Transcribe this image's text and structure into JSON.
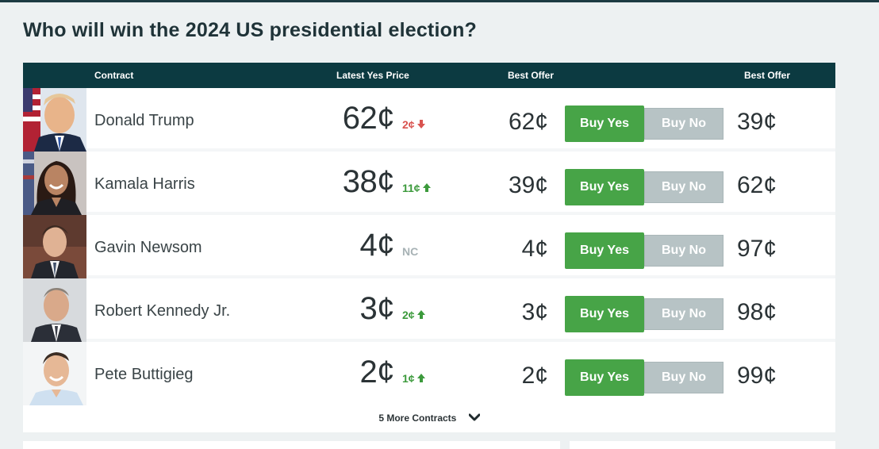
{
  "page": {
    "title": "Who will win the 2024 US presidential election?"
  },
  "table": {
    "headers": {
      "contract": "Contract",
      "latest_yes_price": "Latest Yes Price",
      "best_offer_yes": "Best Offer",
      "best_offer_no": "Best Offer"
    },
    "rows": [
      {
        "name": "Donald Trump",
        "price": "62¢",
        "change": "2¢",
        "direction": "down",
        "best_offer_yes": "62¢",
        "buy_yes": "Buy Yes",
        "buy_no": "Buy No",
        "best_offer_no": "39¢"
      },
      {
        "name": "Kamala Harris",
        "price": "38¢",
        "change": "11¢",
        "direction": "up",
        "best_offer_yes": "39¢",
        "buy_yes": "Buy Yes",
        "buy_no": "Buy No",
        "best_offer_no": "62¢"
      },
      {
        "name": "Gavin Newsom",
        "price": "4¢",
        "change": "NC",
        "direction": "none",
        "best_offer_yes": "4¢",
        "buy_yes": "Buy Yes",
        "buy_no": "Buy No",
        "best_offer_no": "97¢"
      },
      {
        "name": "Robert Kennedy Jr.",
        "price": "3¢",
        "change": "2¢",
        "direction": "up",
        "best_offer_yes": "3¢",
        "buy_yes": "Buy Yes",
        "buy_no": "Buy No",
        "best_offer_no": "98¢"
      },
      {
        "name": "Pete Buttigieg",
        "price": "2¢",
        "change": "1¢",
        "direction": "up",
        "best_offer_yes": "2¢",
        "buy_yes": "Buy Yes",
        "buy_no": "Buy No",
        "best_offer_no": "99¢"
      }
    ],
    "more_contracts": "5 More Contracts"
  },
  "colors": {
    "header_bg": "#0c3a41",
    "buy_yes": "#47a447",
    "buy_no": "#b7c3c5",
    "up": "#3c9a3c",
    "down": "#d9534f",
    "no_change": "#a7b2b5"
  },
  "icons": {
    "down": "arrow-down-icon",
    "up": "arrow-up-icon",
    "expand": "chevron-down-icon"
  }
}
